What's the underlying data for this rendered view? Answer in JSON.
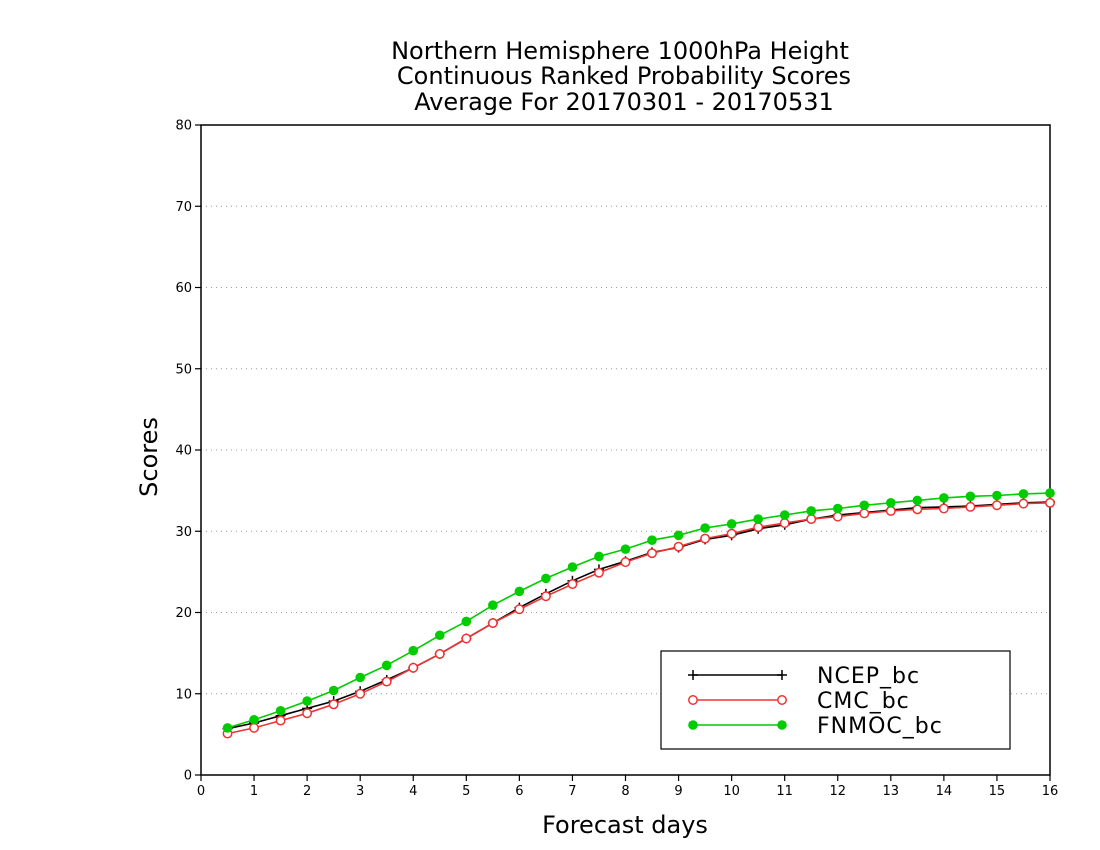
{
  "chart_data": {
    "type": "line",
    "title": [
      "Northern Hemisphere 1000hPa Height",
      "Continuous Ranked Probability Scores",
      "Average For 20170301 - 20170531"
    ],
    "xlabel": "Forecast days",
    "ylabel": "Scores",
    "xlim": [
      0,
      16
    ],
    "ylim": [
      0,
      80
    ],
    "xticks": [
      0,
      1,
      2,
      3,
      4,
      5,
      6,
      7,
      8,
      9,
      10,
      11,
      12,
      13,
      14,
      15,
      16
    ],
    "yticks": [
      0,
      10,
      20,
      30,
      40,
      50,
      60,
      70,
      80
    ],
    "grid": "horizontal-dotted",
    "legend_position": "bottom-right",
    "x": [
      0.5,
      1,
      1.5,
      2,
      2.5,
      3,
      3.5,
      4,
      4.5,
      5,
      5.5,
      6,
      6.5,
      7,
      7.5,
      8,
      8.5,
      9,
      9.5,
      10,
      10.5,
      11,
      11.5,
      12,
      12.5,
      13,
      13.5,
      14,
      14.5,
      15,
      15.5,
      16
    ],
    "series": [
      {
        "name": "NCEP_bc",
        "color": "#000000",
        "marker": "plus",
        "values": [
          5.7,
          6.4,
          7.3,
          8.2,
          9.1,
          10.3,
          11.7,
          13.2,
          14.9,
          16.8,
          18.7,
          20.6,
          22.3,
          23.9,
          25.3,
          26.3,
          27.4,
          28.0,
          29.0,
          29.5,
          30.3,
          30.8,
          31.5,
          32.0,
          32.3,
          32.6,
          32.9,
          33.0,
          33.1,
          33.3,
          33.5,
          33.6
        ]
      },
      {
        "name": "CMC_bc",
        "color": "#ee3333",
        "marker": "open-circle",
        "values": [
          5.1,
          5.8,
          6.7,
          7.6,
          8.7,
          10.0,
          11.5,
          13.2,
          14.9,
          16.8,
          18.7,
          20.4,
          22.0,
          23.5,
          24.9,
          26.2,
          27.3,
          28.1,
          29.1,
          29.7,
          30.5,
          31.0,
          31.5,
          31.8,
          32.2,
          32.5,
          32.7,
          32.8,
          33.0,
          33.2,
          33.4,
          33.5
        ]
      },
      {
        "name": "FNMOC_bc",
        "color": "#00cc00",
        "marker": "filled-circle",
        "values": [
          5.8,
          6.8,
          7.9,
          9.1,
          10.4,
          12.0,
          13.5,
          15.3,
          17.2,
          18.9,
          20.9,
          22.6,
          24.2,
          25.6,
          26.9,
          27.8,
          28.9,
          29.5,
          30.4,
          30.9,
          31.5,
          32.0,
          32.5,
          32.8,
          33.2,
          33.5,
          33.8,
          34.1,
          34.3,
          34.4,
          34.6,
          34.7
        ]
      }
    ]
  }
}
